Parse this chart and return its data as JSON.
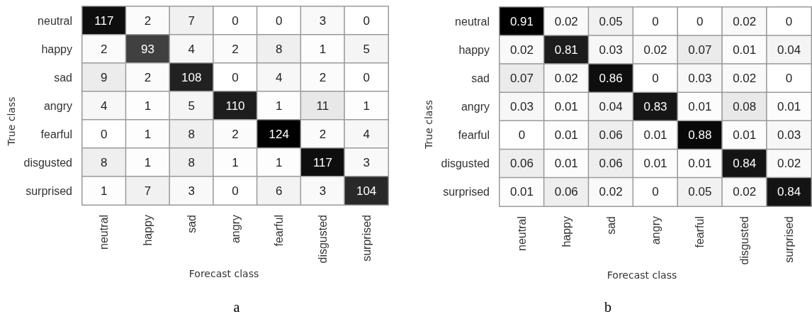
{
  "chart_data": [
    {
      "type": "heatmap",
      "categories": [
        "neutral",
        "happy",
        "sad",
        "angry",
        "fearful",
        "disgusted",
        "surprised"
      ],
      "y_categories": [
        "neutral",
        "happy",
        "sad",
        "angry",
        "fearful",
        "disgusted",
        "surprised"
      ],
      "cells": [
        [
          117,
          2,
          7,
          0,
          0,
          3,
          0
        ],
        [
          2,
          93,
          4,
          2,
          8,
          1,
          5
        ],
        [
          9,
          2,
          108,
          0,
          4,
          2,
          0
        ],
        [
          4,
          1,
          5,
          110,
          1,
          11,
          1
        ],
        [
          0,
          1,
          8,
          2,
          124,
          2,
          4
        ],
        [
          8,
          1,
          8,
          1,
          1,
          117,
          3
        ],
        [
          1,
          7,
          3,
          0,
          6,
          3,
          104
        ]
      ],
      "xlabel": "Forecast class",
      "ylabel": "True class",
      "data_labels": true,
      "annotations": [
        "a"
      ]
    },
    {
      "type": "heatmap",
      "categories": [
        "neutral",
        "happy",
        "sad",
        "angry",
        "fearful",
        "disgusted",
        "surprised"
      ],
      "y_categories": [
        "neutral",
        "happy",
        "sad",
        "angry",
        "fearful",
        "disgusted",
        "surprised"
      ],
      "cells": [
        [
          0.91,
          0.02,
          0.05,
          0,
          0,
          0.02,
          0
        ],
        [
          0.02,
          0.81,
          0.03,
          0.02,
          0.07,
          0.01,
          0.04
        ],
        [
          0.07,
          0.02,
          0.86,
          0,
          0.03,
          0.02,
          0
        ],
        [
          0.03,
          0.01,
          0.04,
          0.83,
          0.01,
          0.08,
          0.01
        ],
        [
          0,
          0.01,
          0.06,
          0.01,
          0.88,
          0.01,
          0.03
        ],
        [
          0.06,
          0.01,
          0.06,
          0.01,
          0.01,
          0.84,
          0.02
        ],
        [
          0.01,
          0.06,
          0.02,
          0,
          0.05,
          0.02,
          0.84
        ]
      ],
      "xlabel": "Forecast class",
      "ylabel": "True class",
      "data_labels": true,
      "annotations": [
        "b"
      ]
    }
  ]
}
